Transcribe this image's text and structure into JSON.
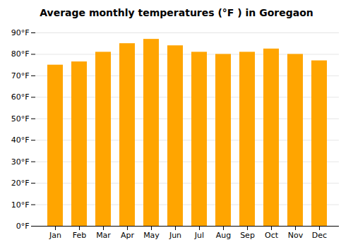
{
  "chart_data": {
    "type": "bar",
    "title": "Average monthly temperatures (°F ) in Goregaon",
    "categories": [
      "Jan",
      "Feb",
      "Mar",
      "Apr",
      "May",
      "Jun",
      "Jul",
      "Aug",
      "Sep",
      "Oct",
      "Nov",
      "Dec"
    ],
    "values": [
      75,
      76.5,
      81,
      85,
      87,
      84,
      81,
      80,
      81,
      82.5,
      80,
      77
    ],
    "color": "#FFA500",
    "ylim": [
      0,
      90
    ],
    "yticks": [
      {
        "value": 0,
        "label": "0°F"
      },
      {
        "value": 10,
        "label": "10°F"
      },
      {
        "value": 20,
        "label": "20°F"
      },
      {
        "value": 30,
        "label": "30°F"
      },
      {
        "value": 40,
        "label": "40°F"
      },
      {
        "value": 50,
        "label": "50°F"
      },
      {
        "value": 60,
        "label": "60°F"
      },
      {
        "value": 70,
        "label": "70°F"
      },
      {
        "value": 80,
        "label": "80°F"
      },
      {
        "value": 90,
        "label": "90°F"
      }
    ],
    "grid": true
  }
}
